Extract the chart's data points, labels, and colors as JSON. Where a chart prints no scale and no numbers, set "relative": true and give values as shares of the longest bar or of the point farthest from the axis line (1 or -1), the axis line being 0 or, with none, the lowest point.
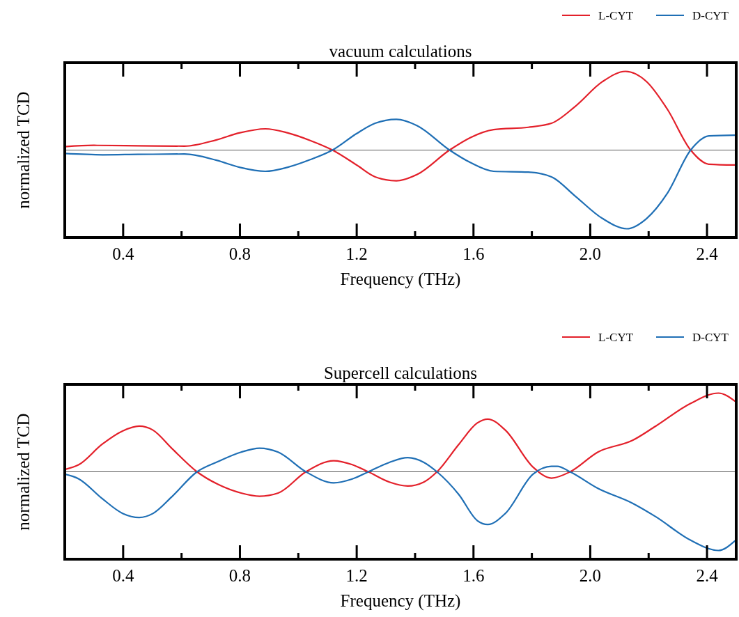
{
  "chart_data": [
    {
      "type": "line",
      "title": "vacuum calculations",
      "xlabel": "Frequency (THz)",
      "ylabel": "normalized TCD",
      "relative": true,
      "legend": "top right",
      "xlim": [
        0.2,
        2.5
      ],
      "xticks": [
        {
          "value": 0.4,
          "label": "0.4"
        },
        {
          "value": 0.6,
          "label": null
        },
        {
          "value": 0.8,
          "label": "0.8"
        },
        {
          "value": 1.0,
          "label": null
        },
        {
          "value": 1.2,
          "label": "1.2"
        },
        {
          "value": 1.4,
          "label": null
        },
        {
          "value": 1.6,
          "label": "1.6"
        },
        {
          "value": 1.8,
          "label": null
        },
        {
          "value": 2.0,
          "label": "2.0"
        },
        {
          "value": 2.2,
          "label": null
        },
        {
          "value": 2.4,
          "label": "2.4"
        }
      ],
      "series": [
        {
          "name": "L-CYT",
          "color": "#e3202a",
          "x": [
            0.2,
            0.3,
            0.45,
            0.61,
            0.72,
            0.8,
            0.887,
            0.962,
            1.042,
            1.117,
            1.2,
            1.263,
            1.336,
            1.407,
            1.518,
            1.59,
            1.669,
            1.788,
            1.867,
            1.947,
            2.042,
            2.121,
            2.193,
            2.264,
            2.344,
            2.407,
            2.495
          ],
          "values": [
            0.044,
            0.06,
            0.055,
            0.05,
            0.13,
            0.22,
            0.27,
            0.22,
            0.12,
            0,
            -0.19,
            -0.34,
            -0.39,
            -0.31,
            0,
            0.16,
            0.26,
            0.29,
            0.34,
            0.55,
            0.87,
            1.0,
            0.87,
            0.52,
            0,
            -0.18,
            -0.19
          ]
        },
        {
          "name": "D-CYT",
          "color": "#1f6fb5",
          "x": [
            0.2,
            0.33,
            0.45,
            0.61,
            0.72,
            0.8,
            0.887,
            0.962,
            1.042,
            1.117,
            1.2,
            1.263,
            1.336,
            1.407,
            1.518,
            1.59,
            1.669,
            1.788,
            1.867,
            1.947,
            2.042,
            2.125,
            2.193,
            2.264,
            2.344,
            2.407,
            2.495
          ],
          "values": [
            -0.044,
            -0.06,
            -0.055,
            -0.05,
            -0.13,
            -0.22,
            -0.27,
            -0.22,
            -0.12,
            0,
            0.21,
            0.34,
            0.39,
            0.31,
            0,
            -0.16,
            -0.27,
            -0.28,
            -0.34,
            -0.58,
            -0.87,
            -1.0,
            -0.87,
            -0.55,
            0,
            0.18,
            0.19
          ]
        }
      ]
    },
    {
      "type": "line",
      "title": "Supercell calculations",
      "xlabel": "Frequency (THz)",
      "ylabel": "normalized TCD",
      "relative": true,
      "legend": "top right",
      "xlim": [
        0.2,
        2.5
      ],
      "xticks": [
        {
          "value": 0.4,
          "label": "0.4"
        },
        {
          "value": 0.6,
          "label": null
        },
        {
          "value": 0.8,
          "label": "0.8"
        },
        {
          "value": 1.0,
          "label": null
        },
        {
          "value": 1.2,
          "label": "1.2"
        },
        {
          "value": 1.4,
          "label": null
        },
        {
          "value": 1.6,
          "label": "1.6"
        },
        {
          "value": 1.8,
          "label": null
        },
        {
          "value": 2.0,
          "label": "2.0"
        },
        {
          "value": 2.2,
          "label": null
        },
        {
          "value": 2.4,
          "label": "2.4"
        }
      ],
      "series": [
        {
          "name": "L-CYT",
          "color": "#e3202a",
          "x": [
            0.2,
            0.248,
            0.328,
            0.399,
            0.455,
            0.502,
            0.566,
            0.653,
            0.725,
            0.804,
            0.867,
            0.931,
            1.026,
            1.121,
            1.185,
            1.24,
            1.312,
            1.375,
            1.43,
            1.475,
            1.55,
            1.613,
            1.649,
            1.709,
            1.804,
            1.867,
            1.931,
            2.026,
            2.145,
            2.224,
            2.344,
            2.439,
            2.495
          ],
          "values": [
            0.03,
            0.09,
            0.35,
            0.52,
            0.58,
            0.53,
            0.3,
            0,
            -0.16,
            -0.27,
            -0.31,
            -0.27,
            0,
            0.14,
            0.09,
            0,
            -0.13,
            -0.18,
            -0.13,
            0,
            0.35,
            0.62,
            0.67,
            0.53,
            0.06,
            -0.08,
            0,
            0.25,
            0.4,
            0.58,
            0.87,
            1.0,
            0.9
          ]
        },
        {
          "name": "D-CYT",
          "color": "#1f6fb5",
          "x": [
            0.2,
            0.248,
            0.328,
            0.399,
            0.455,
            0.502,
            0.566,
            0.653,
            0.725,
            0.804,
            0.867,
            0.931,
            1.026,
            1.121,
            1.185,
            1.24,
            1.312,
            1.375,
            1.43,
            1.475,
            1.55,
            1.613,
            1.649,
            1.709,
            1.804,
            1.867,
            1.887,
            1.931,
            2.026,
            2.145,
            2.224,
            2.344,
            2.439,
            2.495
          ],
          "values": [
            -0.03,
            -0.09,
            -0.34,
            -0.53,
            -0.58,
            -0.53,
            -0.32,
            0,
            0.13,
            0.25,
            0.3,
            0.25,
            0,
            -0.14,
            -0.09,
            0,
            0.12,
            0.18,
            0.12,
            0,
            -0.29,
            -0.62,
            -0.67,
            -0.53,
            -0.03,
            0.07,
            0.07,
            0,
            -0.21,
            -0.4,
            -0.57,
            -0.87,
            -1.0,
            -0.88
          ]
        }
      ]
    }
  ]
}
